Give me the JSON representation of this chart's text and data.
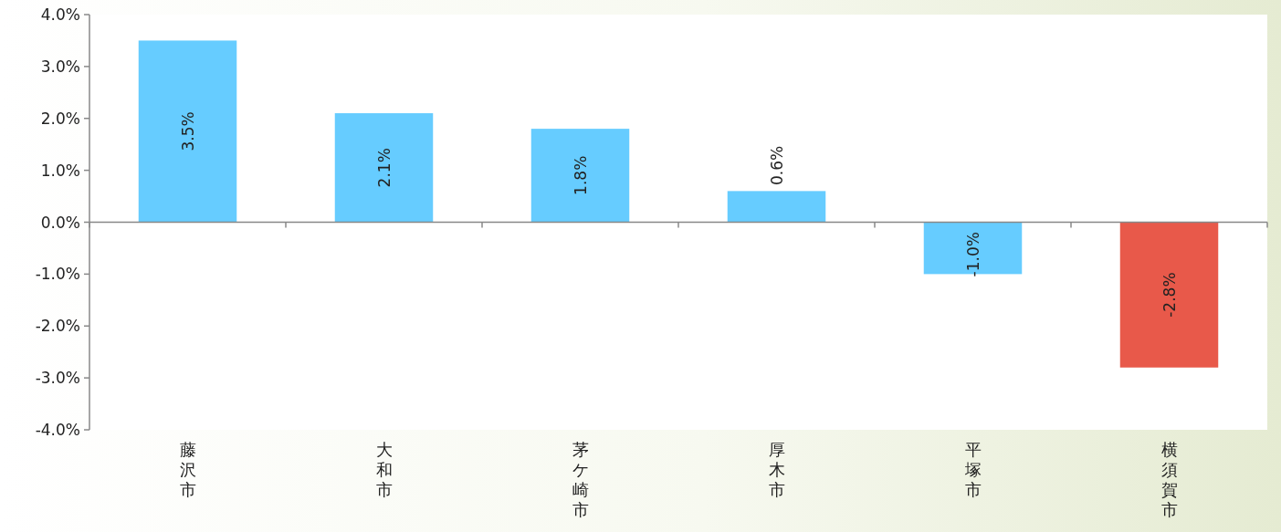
{
  "chart_data": {
    "type": "bar",
    "categories": [
      "藤沢市",
      "大和市",
      "茅ケ崎市",
      "厚木市",
      "平塚市",
      "横須賀市"
    ],
    "values": [
      3.5,
      2.1,
      1.8,
      0.6,
      -1.0,
      -2.8
    ],
    "colors": [
      "#66ccff",
      "#66ccff",
      "#66ccff",
      "#66ccff",
      "#66ccff",
      "#e8594a"
    ],
    "value_labels": [
      "3.5%",
      "2.1%",
      "1.8%",
      "0.6%",
      "-1.0%",
      "-2.8%"
    ],
    "ylim": [
      -4,
      4
    ],
    "yticks": [
      {
        "value": 4,
        "label": "4.0%"
      },
      {
        "value": 3,
        "label": "3.0%"
      },
      {
        "value": 2,
        "label": "2.0%"
      },
      {
        "value": 1,
        "label": "1.0%"
      },
      {
        "value": 0,
        "label": "0.0%"
      },
      {
        "value": -1,
        "label": "-1.0%"
      },
      {
        "value": -2,
        "label": "-2.0%"
      },
      {
        "value": -3,
        "label": "-3.0%"
      },
      {
        "value": -4,
        "label": "-4.0%"
      }
    ]
  }
}
